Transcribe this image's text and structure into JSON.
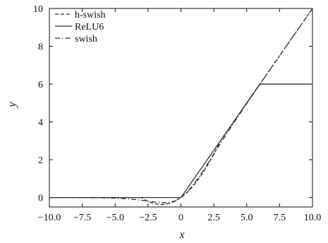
{
  "chart_data": {
    "type": "line",
    "title": "",
    "xlabel": "x",
    "ylabel": "y",
    "xlim": [
      -10,
      10
    ],
    "ylim": [
      -0.5,
      10
    ],
    "xticks": [
      -10,
      -7.5,
      -5,
      -2.5,
      0,
      2.5,
      5,
      7.5,
      10
    ],
    "xtick_labels": [
      "−10.0",
      "−7.5",
      "−5.0",
      "−2.5",
      "0",
      "2.5",
      "5.0",
      "7.5",
      "10.0"
    ],
    "yticks": [
      0,
      2,
      4,
      6,
      8,
      10
    ],
    "ytick_labels": [
      "0",
      "2",
      "4",
      "6",
      "8",
      "10"
    ],
    "grid": false,
    "legend_position": "top-left",
    "series": [
      {
        "name": "h-swish",
        "dash": "dashed",
        "color": "#333333",
        "x": [
          -10,
          -8,
          -6,
          -4,
          -3,
          -2.5,
          -2,
          -1.5,
          -1,
          -0.5,
          0,
          0.5,
          1,
          1.5,
          2,
          2.5,
          3,
          4,
          5,
          6,
          8,
          10
        ],
        "y": [
          0,
          0,
          0,
          0,
          0,
          -0.21,
          -0.33,
          -0.38,
          -0.33,
          -0.21,
          0,
          0.29,
          0.67,
          1.13,
          1.67,
          2.29,
          3,
          4,
          5,
          6,
          8,
          10
        ]
      },
      {
        "name": "ReLU6",
        "dash": "solid",
        "color": "#333333",
        "x": [
          -10,
          0,
          6,
          10
        ],
        "y": [
          0,
          0,
          6,
          6
        ]
      },
      {
        "name": "swish",
        "dash": "dashdot",
        "color": "#333333",
        "x": [
          -10,
          -8,
          -6,
          -5,
          -4,
          -3,
          -2.5,
          -2,
          -1.5,
          -1,
          -0.5,
          0,
          0.5,
          1,
          1.5,
          2,
          2.5,
          3,
          4,
          5,
          6,
          8,
          10
        ],
        "y": [
          -0.0005,
          -0.003,
          -0.015,
          -0.033,
          -0.072,
          -0.142,
          -0.189,
          -0.238,
          -0.274,
          -0.269,
          -0.189,
          0,
          0.311,
          0.731,
          1.226,
          1.762,
          2.311,
          2.858,
          3.928,
          4.967,
          5.985,
          7.997,
          9.9995
        ]
      }
    ]
  }
}
